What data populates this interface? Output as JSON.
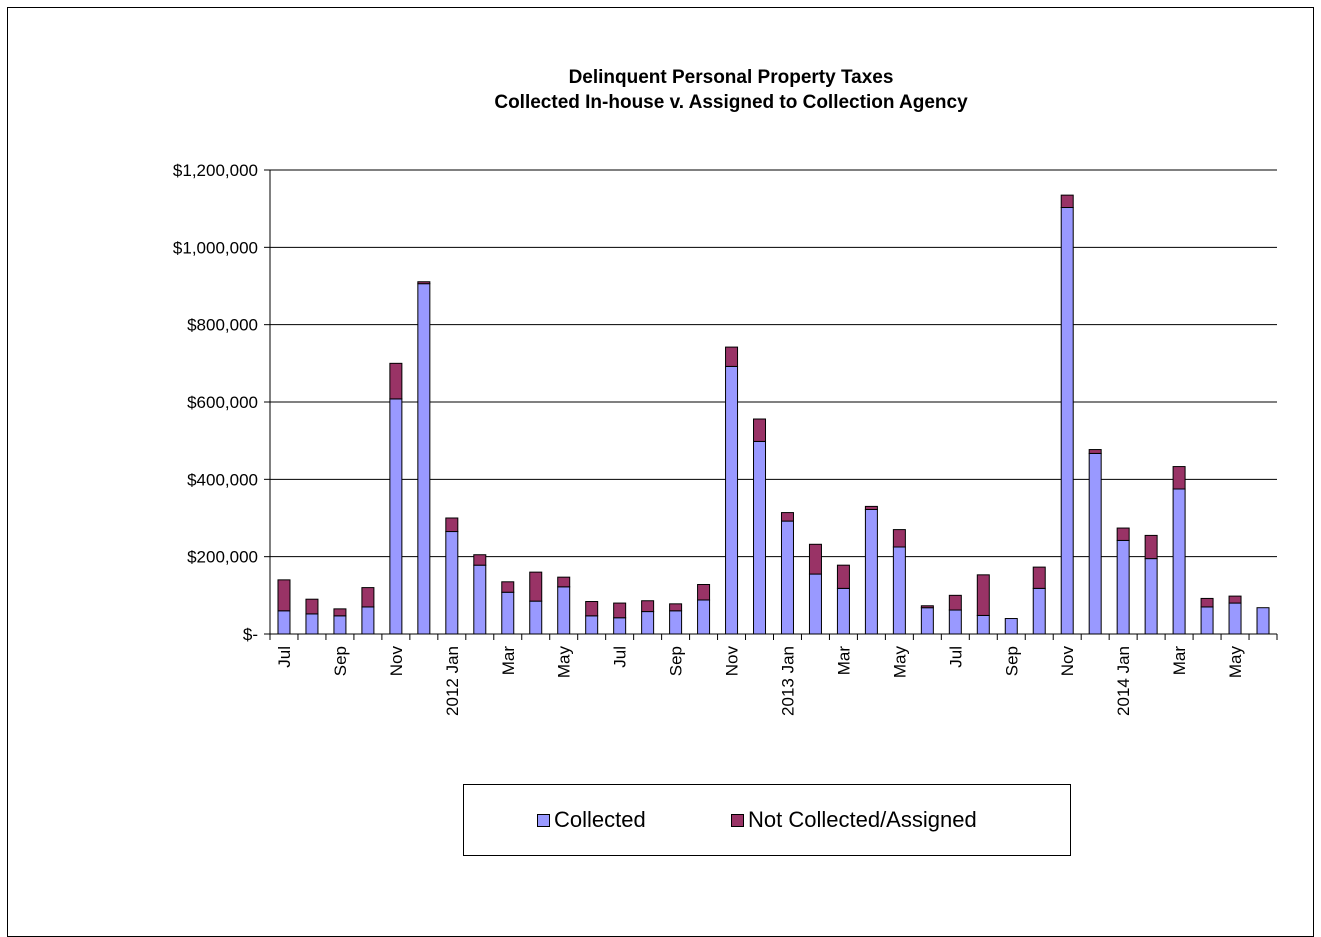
{
  "chart_data": {
    "type": "bar",
    "stacked": true,
    "title": "Delinquent Personal Property Taxes",
    "subtitle": "Collected In-house v. Assigned to Collection Agency",
    "y_ticks": [
      "$-",
      "$200,000",
      "$400,000",
      "$600,000",
      "$800,000",
      "$1,000,000",
      "$1,200,000"
    ],
    "ylim": [
      0,
      1200000
    ],
    "grid": true,
    "legend_position": "bottom",
    "categories": [
      "Jul",
      "",
      "Sep",
      "",
      "Nov",
      "",
      "2012 Jan",
      "",
      "Mar",
      "",
      "May",
      "",
      "Jul",
      "",
      "Sep",
      "",
      "Nov",
      "",
      "2013 Jan",
      "",
      "Mar",
      "",
      "May",
      "",
      "Jul",
      "",
      "Sep",
      "",
      "Nov",
      "",
      "2014 Jan",
      "",
      "Mar",
      "",
      "May",
      ""
    ],
    "series": [
      {
        "name": "Collected",
        "color": "#9999FF",
        "values": [
          60000,
          52000,
          47000,
          70000,
          608000,
          906000,
          265000,
          178000,
          108000,
          85000,
          122000,
          47000,
          42000,
          58000,
          60000,
          88000,
          692000,
          498000,
          292000,
          155000,
          118000,
          322000,
          225000,
          68000,
          62000,
          48000,
          40000,
          118000,
          1103000,
          467000,
          242000,
          195000,
          375000,
          70000,
          80000,
          68000
        ]
      },
      {
        "name": "Not Collected/Assigned",
        "color": "#993366",
        "values": [
          80000,
          38000,
          18000,
          50000,
          92000,
          5000,
          35000,
          27000,
          27000,
          75000,
          25000,
          37000,
          38000,
          28000,
          18000,
          40000,
          50000,
          58000,
          22000,
          77000,
          60000,
          8000,
          45000,
          5000,
          38000,
          105000,
          0,
          55000,
          32000,
          10000,
          32000,
          60000,
          58000,
          22000,
          18000,
          0
        ]
      }
    ]
  }
}
